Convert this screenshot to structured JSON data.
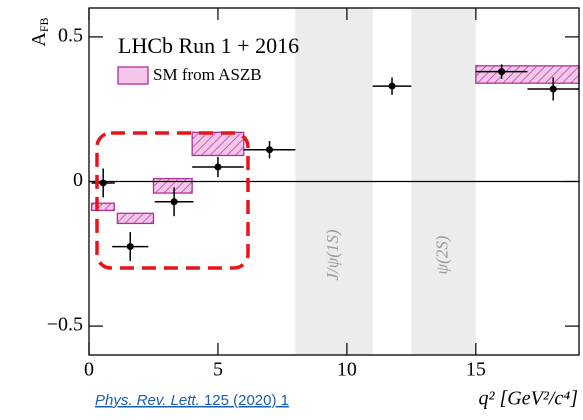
{
  "chart_data": {
    "type": "errorbar",
    "title": "LHCb Run 1 + 2016",
    "y_label": "A",
    "y_label_sub": "FB",
    "x_label": "q² [GeV²/c⁴]",
    "xlim": [
      0,
      19
    ],
    "ylim": [
      -0.6,
      0.6
    ],
    "xticks": [
      0,
      5,
      10,
      15
    ],
    "yticks": [
      {
        "value": -0.5,
        "label": "−0.5"
      },
      0,
      0.5
    ],
    "points": {
      "color": "#000000",
      "x": [
        0.55,
        1.6,
        3.3,
        5.0,
        7.0,
        11.75,
        16.0,
        18.0
      ],
      "xerr": [
        0.45,
        0.7,
        0.75,
        1.0,
        1.0,
        0.75,
        1.0,
        1.0
      ],
      "y": [
        -0.005,
        -0.225,
        -0.07,
        0.05,
        0.11,
        0.33,
        0.38,
        0.32
      ],
      "yerr": [
        0.05,
        0.05,
        0.05,
        0.035,
        0.03,
        0.03,
        0.025,
        0.04
      ]
    },
    "sm": {
      "name": "SM from ASZB",
      "color": "#b0309a",
      "fill": "#f3c6ea",
      "x0": [
        0.1,
        1.1,
        2.5,
        4.0,
        15.0
      ],
      "x1": [
        0.98,
        2.5,
        4.0,
        6.0,
        19.0
      ],
      "y0": [
        -0.1,
        -0.145,
        -0.04,
        0.09,
        0.34
      ],
      "y1": [
        -0.075,
        -0.11,
        0.01,
        0.17,
        0.4
      ]
    },
    "vetoes": [
      {
        "label": "J/ψ(1S)",
        "x0": 8,
        "x1": 11
      },
      {
        "label": "ψ(2S)",
        "x0": 12.5,
        "x1": 15
      }
    ]
  },
  "citation": {
    "journal": "Phys. Rev. Lett.",
    "ref": "125 (2020) 1"
  }
}
